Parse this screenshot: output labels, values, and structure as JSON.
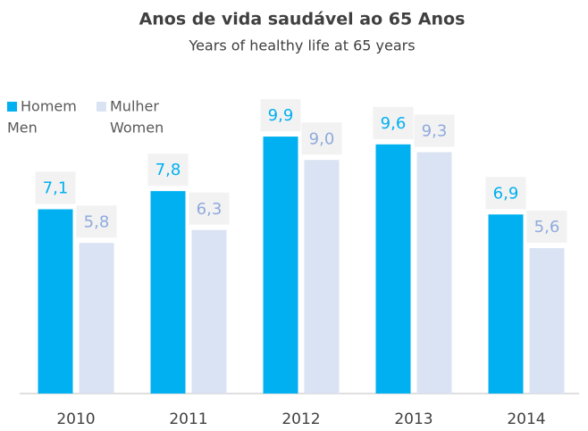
{
  "chart_data": {
    "type": "bar",
    "title": "Anos de vida saudável ao 65 Anos",
    "subtitle": "Years of healthy life at 65 years",
    "categories": [
      "2010",
      "2011",
      "2012",
      "2013",
      "2014"
    ],
    "series": [
      {
        "name": "Homem",
        "subname": "Men",
        "color": "#00b0f0",
        "label_color": "#00b0f0",
        "values": [
          7.1,
          7.8,
          9.9,
          9.6,
          6.9
        ],
        "value_labels": [
          "7,1",
          "7,8",
          "9,9",
          "9,6",
          "6,9"
        ]
      },
      {
        "name": "Mulher",
        "subname": "Women",
        "color": "#dae3f3",
        "label_color": "#8faadc",
        "values": [
          5.8,
          6.3,
          9.0,
          9.3,
          5.6
        ],
        "value_labels": [
          "5,8",
          "6,3",
          "9,0",
          "9,3",
          "5,6"
        ]
      }
    ],
    "ylim": [
      0,
      12
    ],
    "legend": "top-left"
  }
}
